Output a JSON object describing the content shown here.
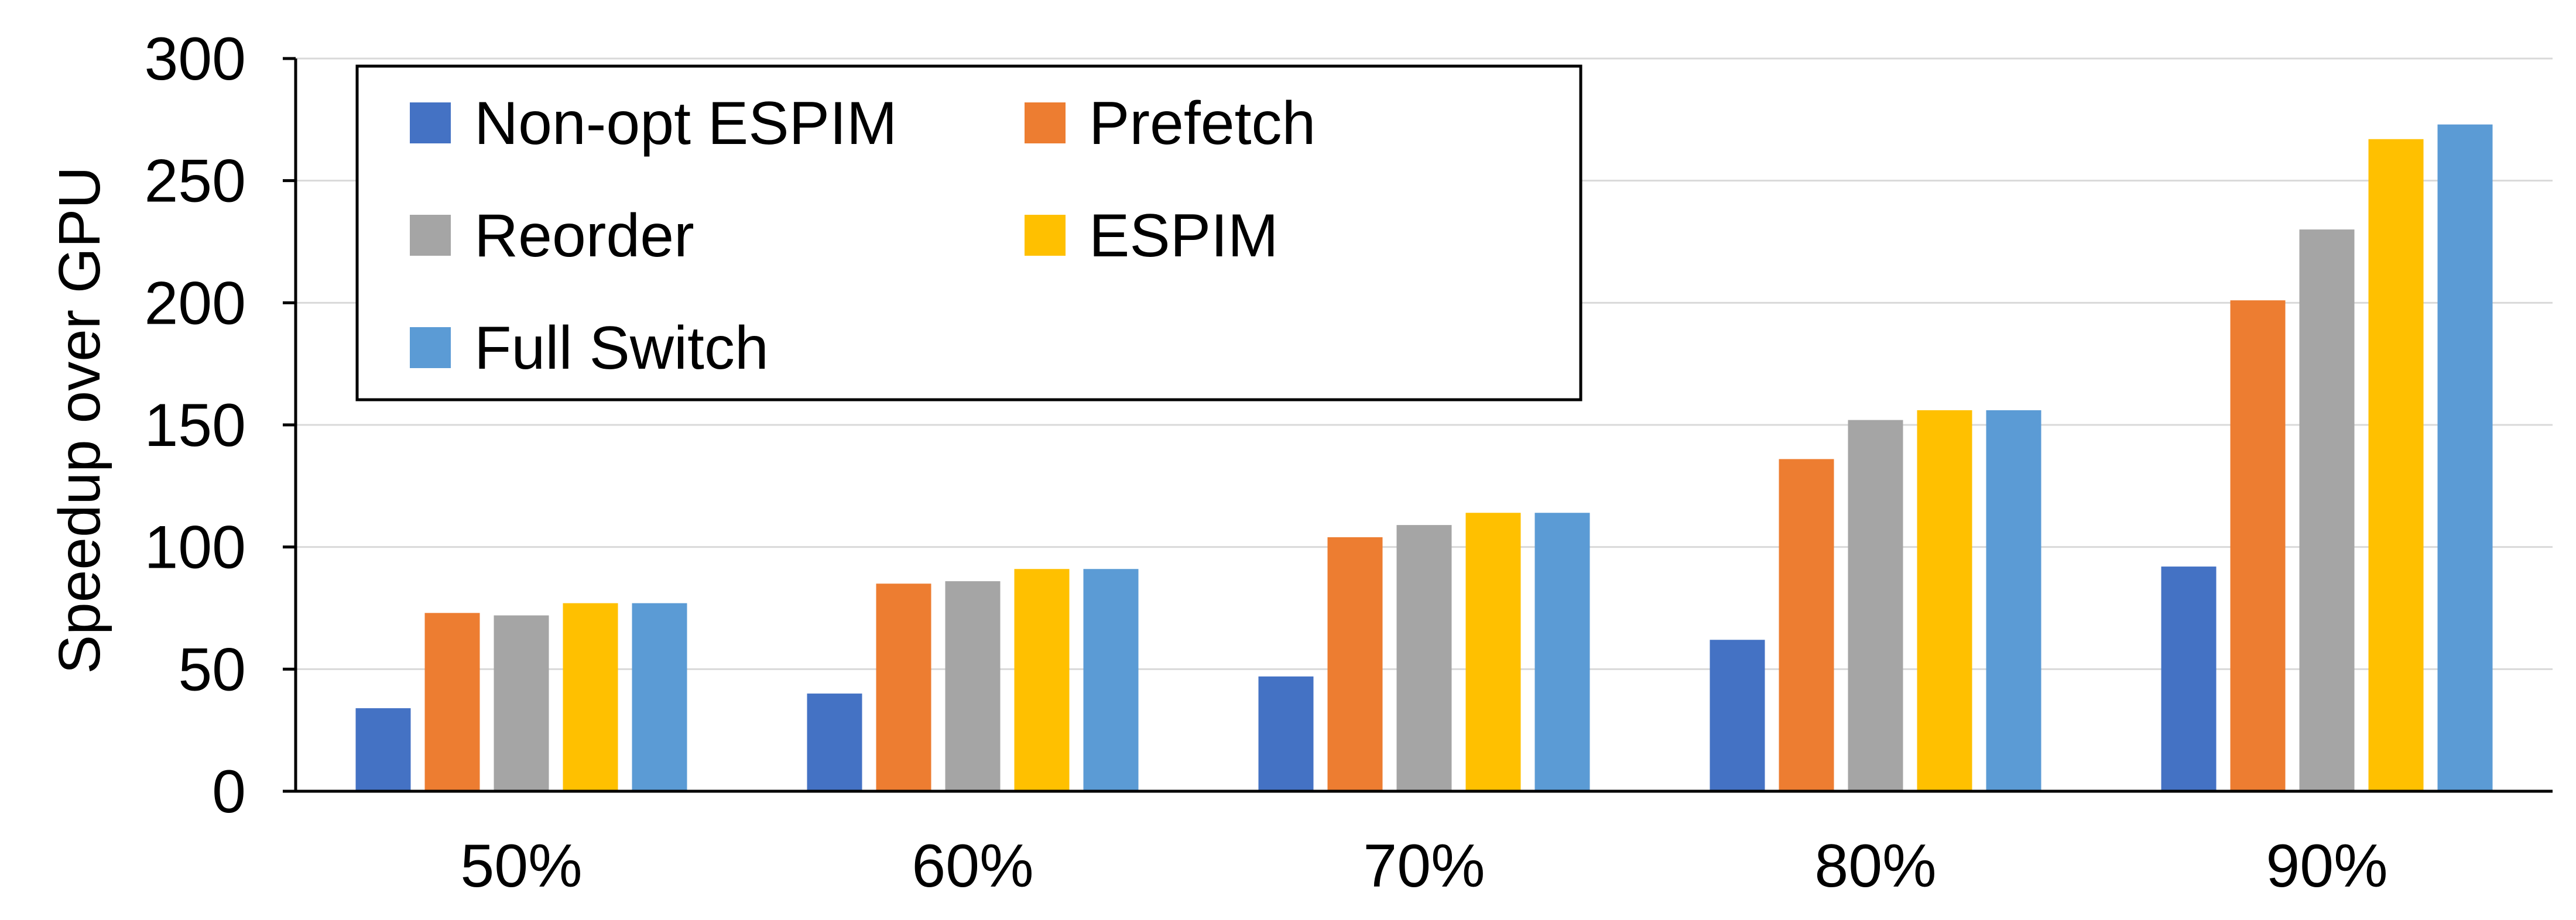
{
  "chart_data": {
    "type": "bar",
    "title": "",
    "xlabel": "",
    "ylabel": "Speedup over GPU",
    "ylim": [
      0,
      300
    ],
    "yticks": [
      0,
      50,
      100,
      150,
      200,
      250,
      300
    ],
    "grid": true,
    "legend_position": "top-left",
    "categories": [
      "50%",
      "60%",
      "70%",
      "80%",
      "90%"
    ],
    "series": [
      {
        "name": "Non-opt ESPIM",
        "color": "#4472C4",
        "values": [
          34,
          40,
          47,
          62,
          92
        ]
      },
      {
        "name": "Prefetch",
        "color": "#ED7D31",
        "values": [
          73,
          85,
          104,
          136,
          201
        ]
      },
      {
        "name": "Reorder",
        "color": "#A5A5A5",
        "values": [
          72,
          86,
          109,
          152,
          230
        ]
      },
      {
        "name": "ESPIM",
        "color": "#FFC000",
        "values": [
          77,
          91,
          114,
          156,
          267
        ]
      },
      {
        "name": "Full Switch",
        "color": "#5B9BD5",
        "values": [
          77,
          91,
          114,
          156,
          273
        ]
      }
    ]
  }
}
